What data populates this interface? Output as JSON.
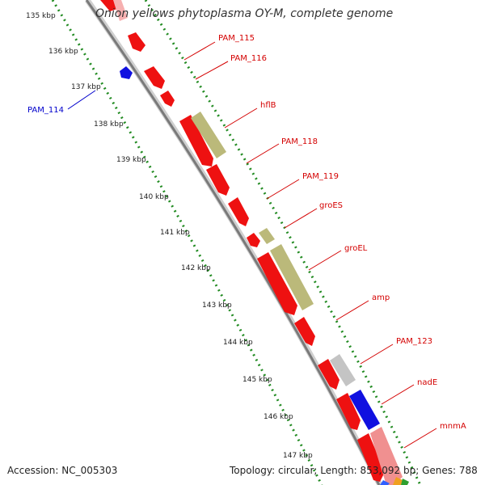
{
  "title": "Onion yellows phytoplasma OY-M, complete genome",
  "footer": {
    "accession_label": "Accession:",
    "accession_value": "NC_005303",
    "topology_label": "Topology:",
    "topology_value": "circular;",
    "length_label": "Length:",
    "length_value": "853,092 bp;",
    "genes_label": "Genes:",
    "genes_value": "788"
  },
  "colors": {
    "forward_gene": "#ee1111",
    "reverse_gene": "#ee1111",
    "blue_gene": "#1010e0",
    "olive_feature": "#bbb97a",
    "grey_feature": "#c4c4c4",
    "pink_feature": "#f09090",
    "backbone": "#808080",
    "tick_dots": "#228b22",
    "gene_label": "#d40000",
    "blue_label": "#0000cc"
  },
  "scale_labels": [
    "135 kbp",
    "136 kbp",
    "137 kbp",
    "138 kbp",
    "139 kbp",
    "140 kbp",
    "141 kbp",
    "142 kbp",
    "143 kbp",
    "144 kbp",
    "145 kbp",
    "146 kbp",
    "147 kbp"
  ],
  "gene_labels": [
    {
      "name": "PAM_115"
    },
    {
      "name": "PAM_116"
    },
    {
      "name": "hflB"
    },
    {
      "name": "PAM_118"
    },
    {
      "name": "PAM_119"
    },
    {
      "name": "groES"
    },
    {
      "name": "groEL"
    },
    {
      "name": "amp"
    },
    {
      "name": "PAM_123"
    },
    {
      "name": "nadE"
    },
    {
      "name": "mnmA"
    }
  ],
  "left_gene_labels": [
    {
      "name": "PAM_114"
    }
  ]
}
